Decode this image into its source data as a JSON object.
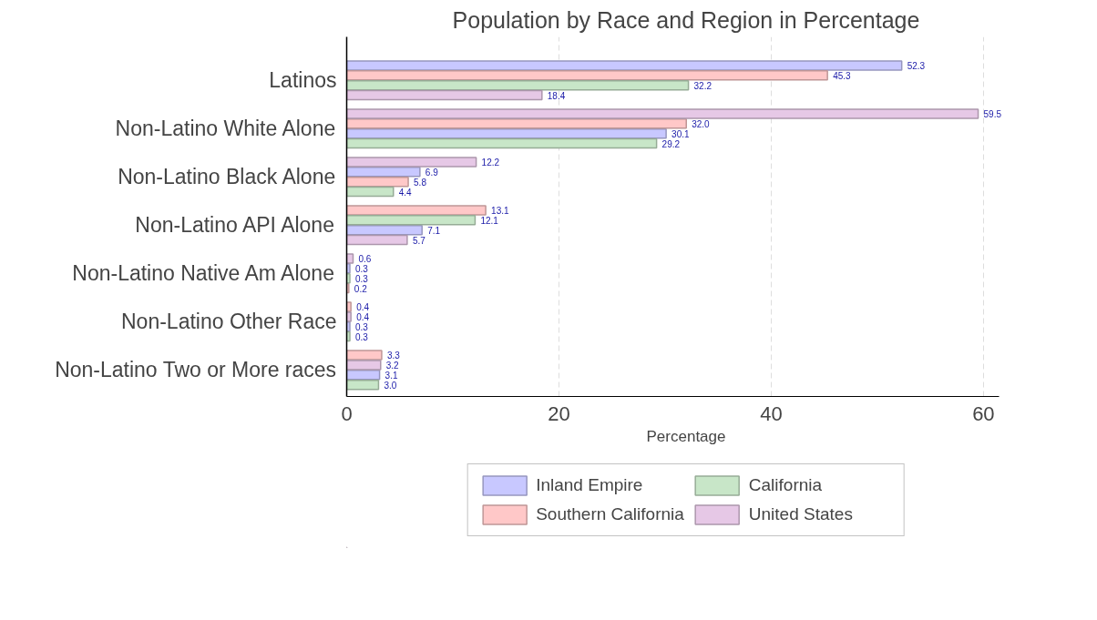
{
  "chart_data": {
    "type": "bar",
    "orientation": "horizontal",
    "title": "Population by Race and Region in Percentage",
    "xlabel": "Percentage",
    "categories": [
      "Latinos",
      "Non-Latino White Alone",
      "Non-Latino Black Alone",
      "Non-Latino API Alone",
      "Non-Latino Native Am Alone",
      "Non-Latino Other Race",
      "Non-Latino Two or More races"
    ],
    "series": [
      {
        "name": "Inland Empire",
        "color": "#c8c8ff",
        "values": [
          52.3,
          30.1,
          6.9,
          7.1,
          0.3,
          0.3,
          3.1
        ],
        "value_labels": [
          "52.3",
          "30.1",
          "6.9",
          "7.1",
          "0.3",
          "0.3",
          "3.1"
        ]
      },
      {
        "name": "Southern California",
        "color": "#ffc8c8",
        "values": [
          45.3,
          32.0,
          5.8,
          13.1,
          0.2,
          0.4,
          3.3
        ],
        "value_labels": [
          "45.3",
          "32.0",
          "5.8",
          "13.1",
          "0.2",
          "0.4",
          "3.3"
        ]
      },
      {
        "name": "California",
        "color": "#c8e6c8",
        "values": [
          32.2,
          29.2,
          4.4,
          12.1,
          0.3,
          0.3,
          3.0
        ],
        "value_labels": [
          "32.2",
          "29.2",
          "4.4",
          "12.1",
          "0.3",
          "0.3",
          "3.0"
        ]
      },
      {
        "name": "United States",
        "color": "#e6c8e6",
        "values": [
          18.4,
          59.5,
          12.2,
          5.7,
          0.6,
          0.4,
          3.2
        ],
        "value_labels": [
          "18.4",
          "59.5",
          "12.2",
          "5.7",
          "0.6",
          "0.4",
          "3.2"
        ]
      }
    ],
    "xlim": [
      0,
      61.5
    ],
    "xticks": [
      0,
      20,
      40,
      60
    ],
    "grid": "x",
    "legend": "bottom"
  }
}
